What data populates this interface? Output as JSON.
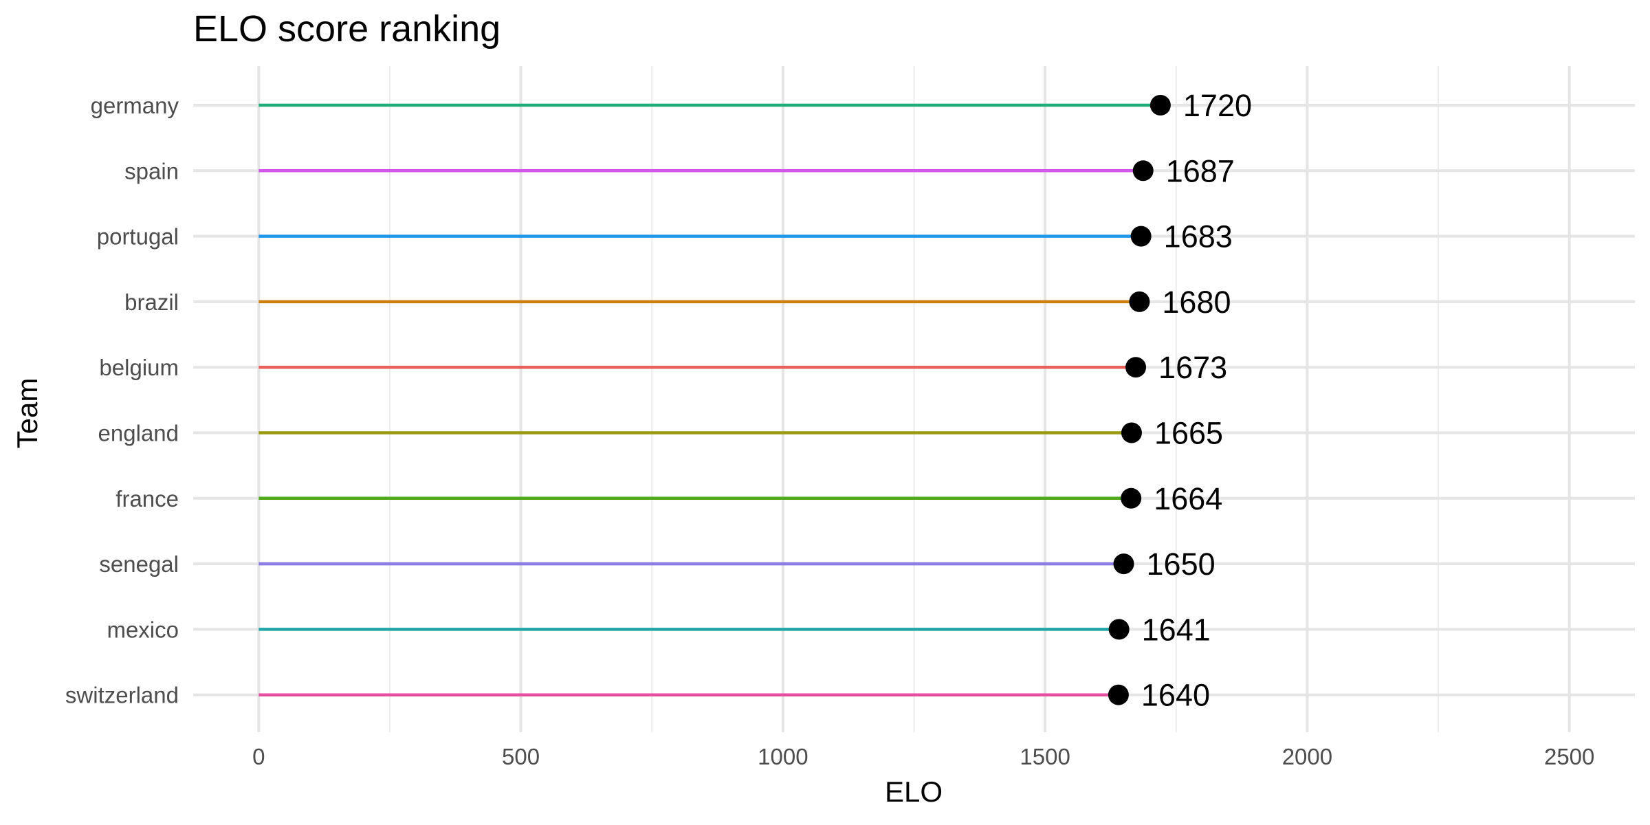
{
  "chart_data": {
    "type": "lollipop",
    "title": "ELO score ranking",
    "xlabel": "ELO",
    "ylabel": "Team",
    "xlim": [
      -125,
      2625
    ],
    "x_ticks": [
      0,
      500,
      1000,
      1500,
      2000,
      2500
    ],
    "x_minor_ticks": [
      250,
      750,
      1250,
      1750,
      2250
    ],
    "grid": true,
    "legend": "none",
    "categories": [
      "germany",
      "spain",
      "portugal",
      "brazil",
      "belgium",
      "england",
      "france",
      "senegal",
      "mexico",
      "switzerland"
    ],
    "values": [
      1720,
      1687,
      1683,
      1680,
      1673,
      1665,
      1664,
      1650,
      1641,
      1640
    ],
    "colors": [
      "#1cae78",
      "#cf5ae6",
      "#2297e6",
      "#c9800b",
      "#e8605a",
      "#9a9a10",
      "#4fa81d",
      "#8a7be6",
      "#1fa6a6",
      "#e64ea0"
    ],
    "point_color": "#000000"
  }
}
